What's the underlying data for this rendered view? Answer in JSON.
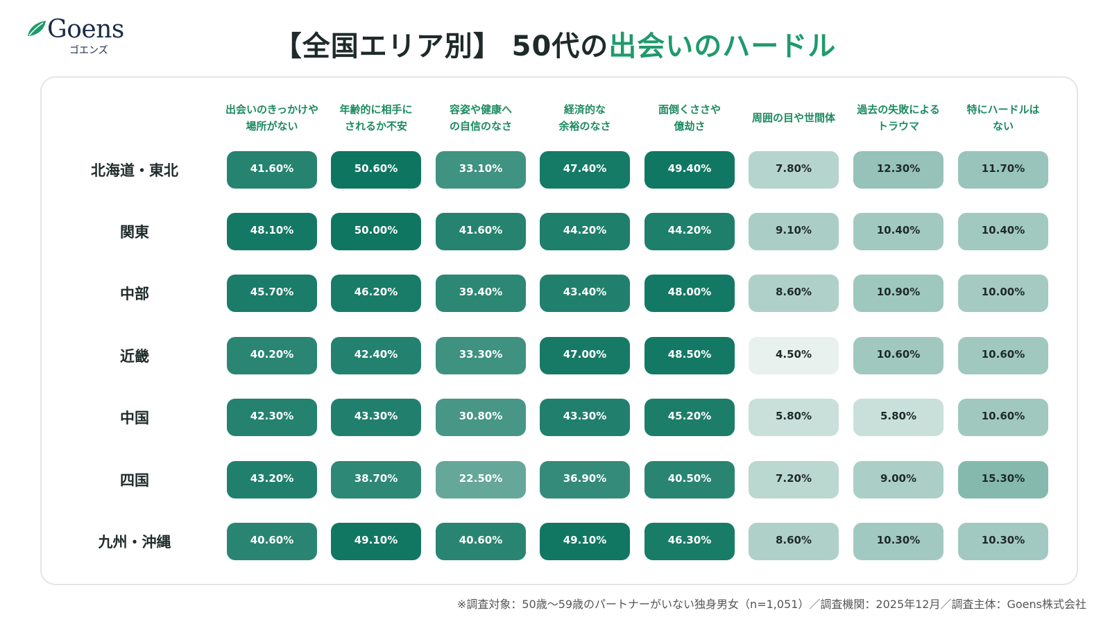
{
  "brand": {
    "logo_text": "Goens",
    "logo_kana": "ゴエンズ",
    "brand_color": "#1f9a6c",
    "navy_color": "#1c2b4a"
  },
  "title": {
    "prefix": "【全国エリア別】 50代の",
    "highlight": "出会いのハードル"
  },
  "chart_data": {
    "type": "heatmap",
    "title": "【全国エリア別】 50代の出会いのハードル",
    "unit": "%",
    "columns": [
      "出会いのきっかけや\n場所がない",
      "年齢的に相手に\nされるか不安",
      "容姿や健康へ\nの自信のなさ",
      "経済的な\n余裕のなさ",
      "面倒くささや\n億劫さ",
      "周囲の目や世間体",
      "過去の失敗による\nトラウマ",
      "特にハードルは\nない"
    ],
    "rows": [
      {
        "name": "北海道・東北",
        "values": [
          41.6,
          50.6,
          33.1,
          47.4,
          49.4,
          7.8,
          12.3,
          11.7
        ]
      },
      {
        "name": "関東",
        "values": [
          48.1,
          50.0,
          41.6,
          44.2,
          44.2,
          9.1,
          10.4,
          10.4
        ]
      },
      {
        "name": "中部",
        "values": [
          45.7,
          46.2,
          39.4,
          43.4,
          48.0,
          8.6,
          10.9,
          10.0
        ]
      },
      {
        "name": "近畿",
        "values": [
          40.2,
          42.4,
          33.3,
          47.0,
          48.5,
          4.5,
          10.6,
          10.6
        ]
      },
      {
        "name": "中国",
        "values": [
          42.3,
          43.3,
          30.8,
          43.3,
          45.2,
          5.8,
          5.8,
          10.6
        ]
      },
      {
        "name": "四国",
        "values": [
          43.2,
          38.7,
          22.5,
          36.9,
          40.5,
          7.2,
          9.0,
          15.3
        ]
      },
      {
        "name": "九州・沖縄",
        "values": [
          40.6,
          49.1,
          40.6,
          49.1,
          46.3,
          8.6,
          10.3,
          10.3
        ]
      }
    ],
    "labels": [
      [
        "41.60%",
        "50.60%",
        "33.10%",
        "47.40%",
        "49.40%",
        "7.80%",
        "12.30%",
        "11.70%"
      ],
      [
        "48.10%",
        "50.00%",
        "41.60%",
        "44.20%",
        "44.20%",
        "9.10%",
        "10.40%",
        "10.40%"
      ],
      [
        "45.70%",
        "46.20%",
        "39.40%",
        "43.40%",
        "48.00%",
        "8.60%",
        "10.90%",
        "10.00%"
      ],
      [
        "40.20%",
        "42.40%",
        "33.30%",
        "47.00%",
        "48.50%",
        "4.50%",
        "10.60%",
        "10.60%"
      ],
      [
        "42.30%",
        "43.30%",
        "30.80%",
        "43.30%",
        "45.20%",
        "5.80%",
        "5.80%",
        "10.60%"
      ],
      [
        "43.20%",
        "38.70%",
        "22.50%",
        "36.90%",
        "40.50%",
        "7.20%",
        "9.00%",
        "15.30%"
      ],
      [
        "40.60%",
        "49.10%",
        "40.60%",
        "49.10%",
        "46.30%",
        "8.60%",
        "10.30%",
        "10.30%"
      ]
    ],
    "color_dark": "#0d7560",
    "color_light": "#e8f1ee"
  },
  "footnote": "※調査対象：50歳〜59歳のパートナーがいない独身男女（n=1,051）／調査機関：2025年12月／調査主体：Goens株式会社"
}
